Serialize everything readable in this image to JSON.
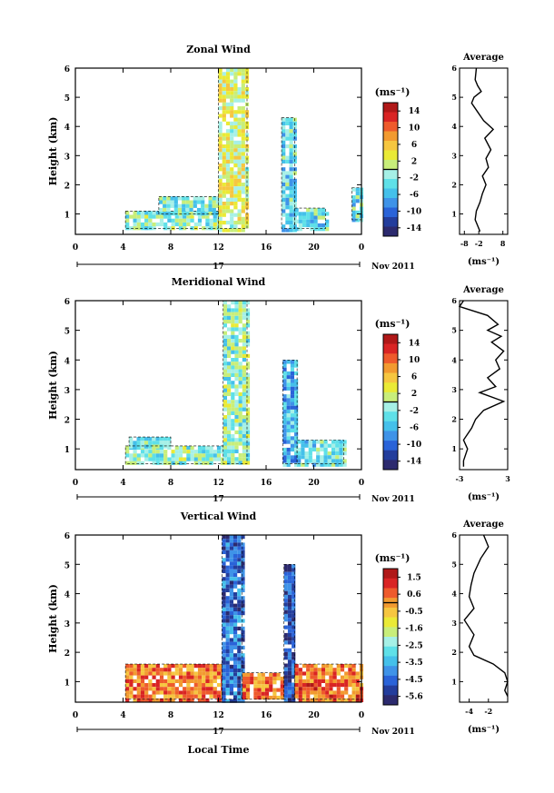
{
  "chart_data": [
    {
      "type": "heatmap",
      "title": "Zonal Wind",
      "ylabel": "Height (km)",
      "x_ticks": [
        "0",
        "4",
        "8",
        "12",
        "16",
        "20",
        "0"
      ],
      "xlim": [
        0,
        24
      ],
      "y_ticks": [
        "1",
        "2",
        "3",
        "4",
        "5",
        "6"
      ],
      "ylim": [
        0.3,
        6
      ],
      "date_label": "17",
      "date_suffix": "Nov 2011",
      "colorbar": {
        "label": "(ms⁻¹)",
        "ticks": [
          "14",
          "10",
          "6",
          "2",
          "-2",
          "-6",
          "-10",
          "-14"
        ],
        "range": [
          -16,
          16
        ]
      },
      "blocks": [
        {
          "x": [
            4.2,
            12
          ],
          "y": [
            0.5,
            1.1
          ],
          "v": -1.5
        },
        {
          "x": [
            7,
            12
          ],
          "y": [
            1,
            1.6
          ],
          "v": -2
        },
        {
          "x": [
            12,
            14.4
          ],
          "y": [
            0.5,
            6
          ],
          "v": 2
        },
        {
          "x": [
            17.3,
            18.4
          ],
          "y": [
            0.5,
            4.3
          ],
          "v": -4
        },
        {
          "x": [
            18.4,
            21
          ],
          "y": [
            0.5,
            1.2
          ],
          "v": -3
        },
        {
          "x": [
            23.2,
            24
          ],
          "y": [
            0.8,
            1.9
          ],
          "v": -3
        }
      ],
      "average": {
        "title": "Average",
        "xlabel": "(ms⁻¹)",
        "x_ticks": [
          "-8",
          "-2",
          "8"
        ],
        "xlim": [
          -10,
          10
        ],
        "points": [
          [
            -3,
            6
          ],
          [
            -3.5,
            5.6
          ],
          [
            -2.5,
            5.4
          ],
          [
            -1,
            5.2
          ],
          [
            -4,
            5
          ],
          [
            -5,
            4.8
          ],
          [
            -2.5,
            4.5
          ],
          [
            0,
            4.2
          ],
          [
            4,
            3.9
          ],
          [
            0.5,
            3.6
          ],
          [
            3,
            3.2
          ],
          [
            1,
            2.9
          ],
          [
            2,
            2.6
          ],
          [
            -0.5,
            2.3
          ],
          [
            1,
            2
          ],
          [
            -0.5,
            1.7
          ],
          [
            -1.5,
            1.4
          ],
          [
            -3,
            1.1
          ],
          [
            -3.5,
            0.8
          ],
          [
            -2.5,
            0.6
          ],
          [
            -1.5,
            0.4
          ]
        ]
      }
    },
    {
      "type": "heatmap",
      "title": "Meridional Wind",
      "ylabel": "Height (km)",
      "x_ticks": [
        "0",
        "4",
        "8",
        "12",
        "16",
        "20",
        "0"
      ],
      "xlim": [
        0,
        24
      ],
      "y_ticks": [
        "1",
        "2",
        "3",
        "4",
        "5",
        "6"
      ],
      "ylim": [
        0.3,
        6
      ],
      "date_label": "17",
      "date_suffix": "Nov 2011",
      "colorbar": {
        "label": "(ms⁻¹)",
        "ticks": [
          "14",
          "10",
          "6",
          "2",
          "-2",
          "-6",
          "-10",
          "-14"
        ],
        "range": [
          -16,
          16
        ]
      },
      "blocks": [
        {
          "x": [
            4.2,
            12.6
          ],
          "y": [
            0.5,
            1.1
          ],
          "v": -1.5
        },
        {
          "x": [
            4.5,
            8
          ],
          "y": [
            1.1,
            1.4
          ],
          "v": -2
        },
        {
          "x": [
            12.4,
            14.4
          ],
          "y": [
            0.5,
            6
          ],
          "v": -1
        },
        {
          "x": [
            17.4,
            18.6
          ],
          "y": [
            0.5,
            4
          ],
          "v": -6
        },
        {
          "x": [
            18.6,
            22.5
          ],
          "y": [
            0.5,
            1.3
          ],
          "v": -3
        }
      ],
      "average": {
        "title": "Average",
        "xlabel": "(ms⁻¹)",
        "x_ticks": [
          "-3",
          "3"
        ],
        "xlim": [
          -3,
          3
        ],
        "points": [
          [
            -2.5,
            6
          ],
          [
            -3,
            5.8
          ],
          [
            0.5,
            5.5
          ],
          [
            1.8,
            5.2
          ],
          [
            0.5,
            5
          ],
          [
            2.2,
            4.8
          ],
          [
            1,
            4.6
          ],
          [
            2.5,
            4.3
          ],
          [
            1.5,
            4
          ],
          [
            2,
            3.7
          ],
          [
            0.5,
            3.4
          ],
          [
            1.5,
            3.1
          ],
          [
            -0.5,
            2.9
          ],
          [
            2.5,
            2.6
          ],
          [
            0,
            2.3
          ],
          [
            -1,
            2
          ],
          [
            -1.5,
            1.7
          ],
          [
            -2.5,
            1.3
          ],
          [
            -2,
            1
          ],
          [
            -2.5,
            0.6
          ],
          [
            -2.5,
            0.4
          ]
        ]
      }
    },
    {
      "type": "heatmap",
      "title": "Vertical Wind",
      "xlabel": "Local Time",
      "ylabel": "Height (km)",
      "x_ticks": [
        "0",
        "4",
        "8",
        "12",
        "16",
        "20",
        "0"
      ],
      "xlim": [
        0,
        24
      ],
      "y_ticks": [
        "1",
        "2",
        "3",
        "4",
        "5",
        "6"
      ],
      "ylim": [
        0.3,
        6
      ],
      "date_label": "17",
      "date_suffix": "Nov 2011",
      "colorbar": {
        "label": "(ms⁻¹)",
        "ticks": [
          "1.5",
          "0.6",
          "-0.5",
          "-1.6",
          "-2.5",
          "-3.5",
          "-4.5",
          "-5.6"
        ],
        "range": [
          -6,
          2
        ]
      },
      "blocks": [
        {
          "x": [
            4.2,
            12.3
          ],
          "y": [
            0.4,
            1.6
          ],
          "v": 0.3
        },
        {
          "x": [
            12.3,
            14
          ],
          "y": [
            0.4,
            6
          ],
          "v": -4.5
        },
        {
          "x": [
            14,
            17.5
          ],
          "y": [
            0.4,
            1.3
          ],
          "v": 0.3
        },
        {
          "x": [
            17.5,
            18.4
          ],
          "y": [
            0.4,
            5
          ],
          "v": -4.8
        },
        {
          "x": [
            18.4,
            24
          ],
          "y": [
            0.4,
            1.6
          ],
          "v": 0.4
        }
      ],
      "average": {
        "title": "Average",
        "xlabel": "(ms⁻¹)",
        "x_ticks": [
          "-4",
          "-2"
        ],
        "xlim": [
          -5,
          0
        ],
        "points": [
          [
            -2.5,
            6
          ],
          [
            -2,
            5.6
          ],
          [
            -2.8,
            5.2
          ],
          [
            -3.5,
            4.7
          ],
          [
            -3.8,
            4.3
          ],
          [
            -4,
            3.9
          ],
          [
            -3.5,
            3.5
          ],
          [
            -4.5,
            3.1
          ],
          [
            -3.5,
            2.6
          ],
          [
            -4,
            2.2
          ],
          [
            -3.5,
            1.9
          ],
          [
            -1.5,
            1.6
          ],
          [
            -0.3,
            1.3
          ],
          [
            0,
            1
          ],
          [
            -0.3,
            0.7
          ],
          [
            0,
            0.5
          ]
        ]
      }
    }
  ]
}
